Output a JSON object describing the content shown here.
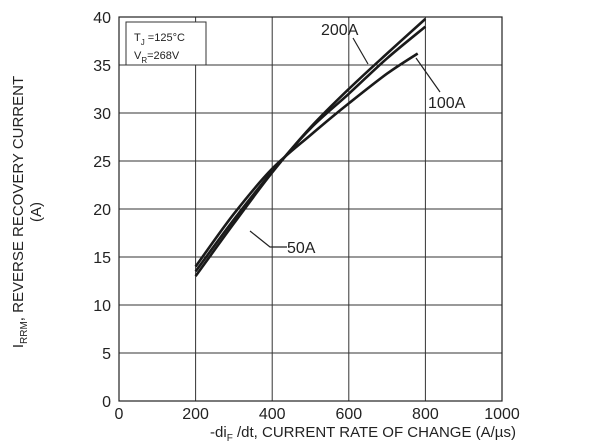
{
  "chart_data": {
    "type": "line",
    "title": "",
    "xlabel": "-di_F /dt, CURRENT RATE OF CHANGE (A/µs)",
    "xlabel_parts": {
      "pre": "-di",
      "sub": "F",
      "post": " /dt, CURRENT RATE OF CHANGE (A/µs)"
    },
    "ylabel_line1": {
      "pre": "I",
      "sub": "RRM",
      "post": ", REVERSE RECOVERY CURRENT"
    },
    "ylabel_line2": "(A)",
    "xlim": [
      0,
      1000
    ],
    "ylim": [
      0,
      40
    ],
    "xticks": [
      0,
      200,
      400,
      600,
      800,
      1000
    ],
    "yticks": [
      0,
      5,
      10,
      15,
      20,
      25,
      30,
      35,
      40
    ],
    "grid": true,
    "conditions": {
      "tj": {
        "pre": "T",
        "sub": "J",
        "post": " =125°C"
      },
      "vr": {
        "pre": "V",
        "sub": "R",
        "post": "=268V"
      }
    },
    "series": [
      {
        "name": "200A",
        "x": [
          200,
          300,
          400,
          500,
          600,
          700,
          800
        ],
        "y": [
          13.0,
          18.5,
          23.8,
          28.5,
          32.5,
          36.2,
          39.8
        ]
      },
      {
        "name": "100A",
        "x": [
          200,
          300,
          400,
          500,
          600,
          700,
          800
        ],
        "y": [
          13.5,
          18.9,
          23.9,
          28.4,
          32.0,
          35.7,
          39.0
        ]
      },
      {
        "name": "50A",
        "x": [
          200,
          300,
          400,
          500,
          600,
          700,
          780
        ],
        "y": [
          14.0,
          19.5,
          24.2,
          27.7,
          31.0,
          34.1,
          36.2
        ]
      }
    ]
  }
}
